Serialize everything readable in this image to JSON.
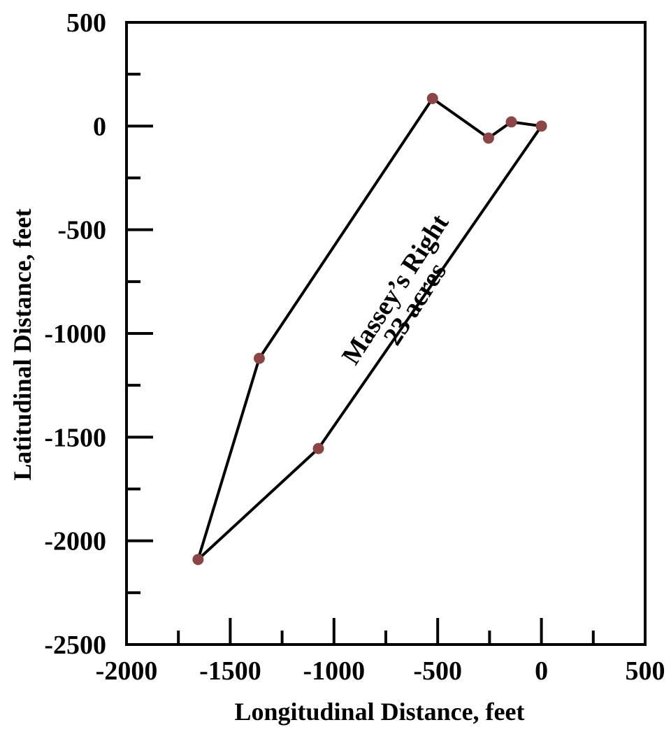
{
  "chart_data": {
    "type": "scatter",
    "xlabel": "Longitudinal Distance, feet",
    "ylabel": "Latitudinal Distance, feet",
    "xlim": [
      -2000,
      500
    ],
    "ylim": [
      -2500,
      500
    ],
    "x_major_ticks": [
      -2000,
      -1500,
      -1000,
      -500,
      0,
      500
    ],
    "y_major_ticks": [
      500,
      0,
      -500,
      -1000,
      -1500,
      -2000,
      -2500
    ],
    "x_minor_ticks": [
      -1750,
      -1250,
      -750,
      -250,
      250
    ],
    "y_minor_ticks": [
      250,
      -250,
      -750,
      -1250,
      -1750,
      -2250
    ],
    "x_tick_labels": [
      "-2000",
      "-1500",
      "-1000",
      "-500",
      "0",
      "500"
    ],
    "y_tick_labels": [
      "500",
      "0",
      "-500",
      "-1000",
      "-1500",
      "-2000",
      "-2500"
    ],
    "grid": false,
    "legend": "none",
    "series": [
      {
        "points": [
          {
            "x": 0,
            "y": 0
          },
          {
            "x": -145,
            "y": 20
          },
          {
            "x": -255,
            "y": -58
          },
          {
            "x": -525,
            "y": 133
          },
          {
            "x": -1360,
            "y": -1120
          },
          {
            "x": -1655,
            "y": -2090
          },
          {
            "x": -1075,
            "y": -1555
          },
          {
            "x": 0,
            "y": 0
          }
        ],
        "marker_color": "#8b4545",
        "line_color": "#000000",
        "closed": true
      }
    ],
    "annotations": [
      {
        "text": "Massey’s Right",
        "x": -670,
        "y": -810,
        "rotation_deg": -57
      },
      {
        "text": "23 acres",
        "x": -575,
        "y": -880,
        "rotation_deg": -57
      }
    ]
  }
}
